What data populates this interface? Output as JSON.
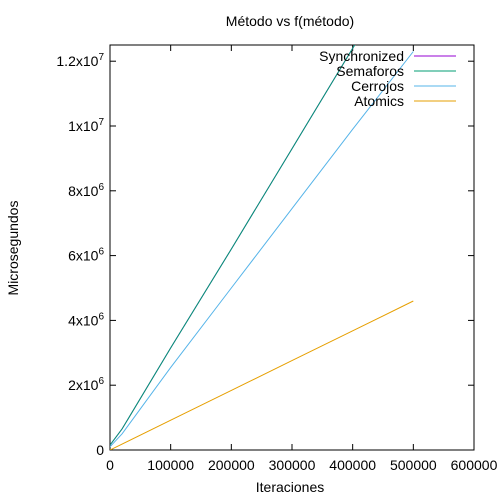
{
  "chart_data": {
    "type": "line",
    "title": "Método vs f(método)",
    "xlabel": "Iteraciones",
    "ylabel": "Microsegundos",
    "xlim": [
      0,
      600000
    ],
    "ylim": [
      0,
      12500000
    ],
    "grid": false,
    "legend_position": "top-right",
    "x_ticks": [
      0,
      100000,
      200000,
      300000,
      400000,
      500000,
      600000
    ],
    "x_tick_labels": [
      "0",
      "100000",
      "200000",
      "300000",
      "400000",
      "500000",
      "600000"
    ],
    "y_ticks": [
      {
        "value": 0,
        "base": "0",
        "exp": ""
      },
      {
        "value": 2000000,
        "base": "2x10",
        "exp": "6"
      },
      {
        "value": 4000000,
        "base": "4x10",
        "exp": "6"
      },
      {
        "value": 6000000,
        "base": "6x10",
        "exp": "6"
      },
      {
        "value": 8000000,
        "base": "8x10",
        "exp": "6"
      },
      {
        "value": 10000000,
        "base": "1x10",
        "exp": "7"
      },
      {
        "value": 12000000,
        "base": "1.2x10",
        "exp": "7"
      }
    ],
    "series": [
      {
        "name": "Synchronized",
        "color": "#9400d3",
        "x": [
          0,
          20000,
          100000,
          200000,
          300000,
          400000,
          410000
        ],
        "y": [
          150000,
          650000,
          3150000,
          6200000,
          9300000,
          12400000,
          12700000
        ]
      },
      {
        "name": "Semaforos",
        "color": "#009e73",
        "x": [
          0,
          20000,
          100000,
          200000,
          300000,
          400000,
          410000
        ],
        "y": [
          150000,
          650000,
          3150000,
          6200000,
          9300000,
          12400000,
          12700000
        ]
      },
      {
        "name": "Cerrojos",
        "color": "#56b4e9",
        "x": [
          0,
          20000,
          100000,
          200000,
          300000,
          400000,
          500000
        ],
        "y": [
          100000,
          500000,
          2550000,
          5000000,
          7450000,
          9900000,
          12300000
        ]
      },
      {
        "name": "Atomics",
        "color": "#e69f00",
        "x": [
          0,
          100000,
          200000,
          300000,
          400000,
          500000
        ],
        "y": [
          0,
          920000,
          1840000,
          2760000,
          3680000,
          4600000
        ]
      }
    ]
  }
}
